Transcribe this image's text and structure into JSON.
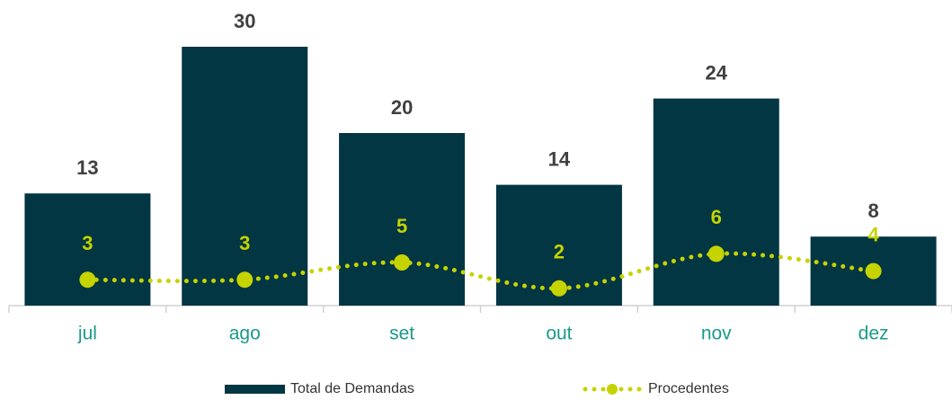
{
  "chart_data": {
    "type": "bar",
    "categories": [
      "jul",
      "ago",
      "set",
      "out",
      "nov",
      "dez"
    ],
    "ylim": [
      0,
      30
    ],
    "series": [
      {
        "name": "Total de Demandas",
        "type": "bar",
        "color": "#023642",
        "values": [
          13,
          30,
          20,
          14,
          24,
          8
        ]
      },
      {
        "name": "Procedentes",
        "type": "line",
        "color": "#c5d300",
        "values": [
          3,
          3,
          5,
          2,
          6,
          4
        ]
      }
    ]
  }
}
